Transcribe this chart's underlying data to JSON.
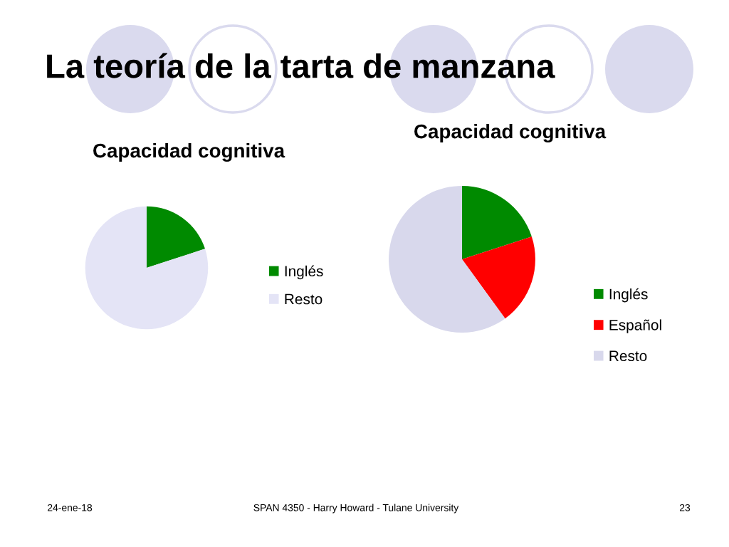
{
  "chart_data": [
    {
      "type": "other",
      "title": "La teoría de la tarta de manzana",
      "annotations": [
        "24-ene-18",
        "SPAN 4350 - Harry Howard - Tulane University",
        "23"
      ]
    },
    {
      "type": "pie",
      "title": "Capacidad cognitiva",
      "categories": [
        "Inglés",
        "Resto"
      ],
      "values": [
        20,
        80
      ],
      "colors": [
        "#008a00",
        "#e4e4f6"
      ],
      "legend": "right"
    },
    {
      "type": "pie",
      "title": "Capacidad cognitiva",
      "categories": [
        "Inglés",
        "Español",
        "Resto"
      ],
      "values": [
        20,
        20,
        60
      ],
      "colors": [
        "#008a00",
        "#ff0000",
        "#d8d8ec"
      ],
      "legend": "right"
    }
  ]
}
